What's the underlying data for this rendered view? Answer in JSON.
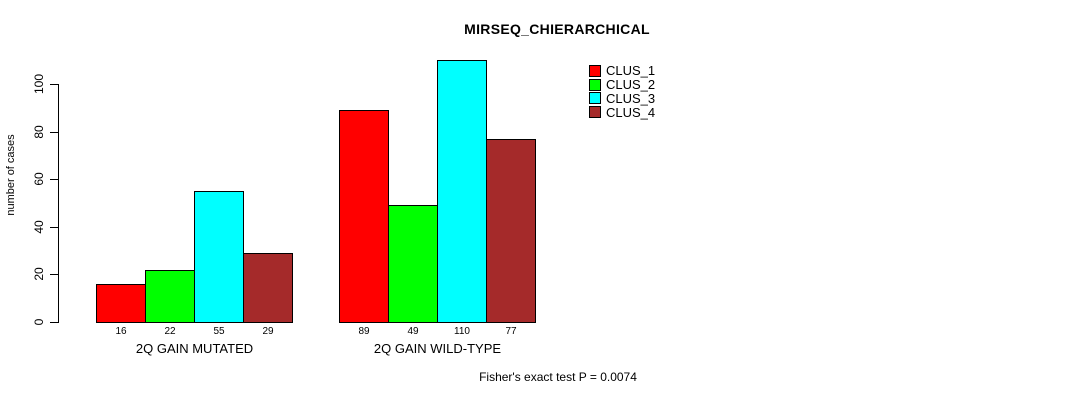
{
  "title": "MIRSEQ_CHIERARCHICAL",
  "footer_text": "Fisher's exact test P = 0.0074",
  "colors": {
    "clus_1": "#FF0000",
    "clus_2": "#00FF00",
    "clus_3": "#00FFFF",
    "clus_4": "#A52A2A",
    "axis": "#000000",
    "background": "#FFFFFF"
  },
  "chart_data": {
    "type": "bar",
    "title": "MIRSEQ_CHIERARCHICAL",
    "xlabel": "",
    "ylabel": "number of cases",
    "ylim": [
      0,
      115
    ],
    "yticks": [
      0,
      20,
      40,
      60,
      80,
      100
    ],
    "grid": false,
    "legend_position": "top-right-inside",
    "bar_value_labels": true,
    "categories": [
      "2Q GAIN MUTATED",
      "2Q GAIN WILD-TYPE"
    ],
    "series": [
      {
        "name": "CLUS_1",
        "color": "#FF0000",
        "values": [
          16,
          89
        ]
      },
      {
        "name": "CLUS_2",
        "color": "#00FF00",
        "values": [
          22,
          49
        ]
      },
      {
        "name": "CLUS_3",
        "color": "#00FFFF",
        "values": [
          55,
          110
        ]
      },
      {
        "name": "CLUS_4",
        "color": "#A52A2A",
        "values": [
          29,
          77
        ]
      }
    ],
    "annotation": "Fisher's exact test P = 0.0074"
  }
}
